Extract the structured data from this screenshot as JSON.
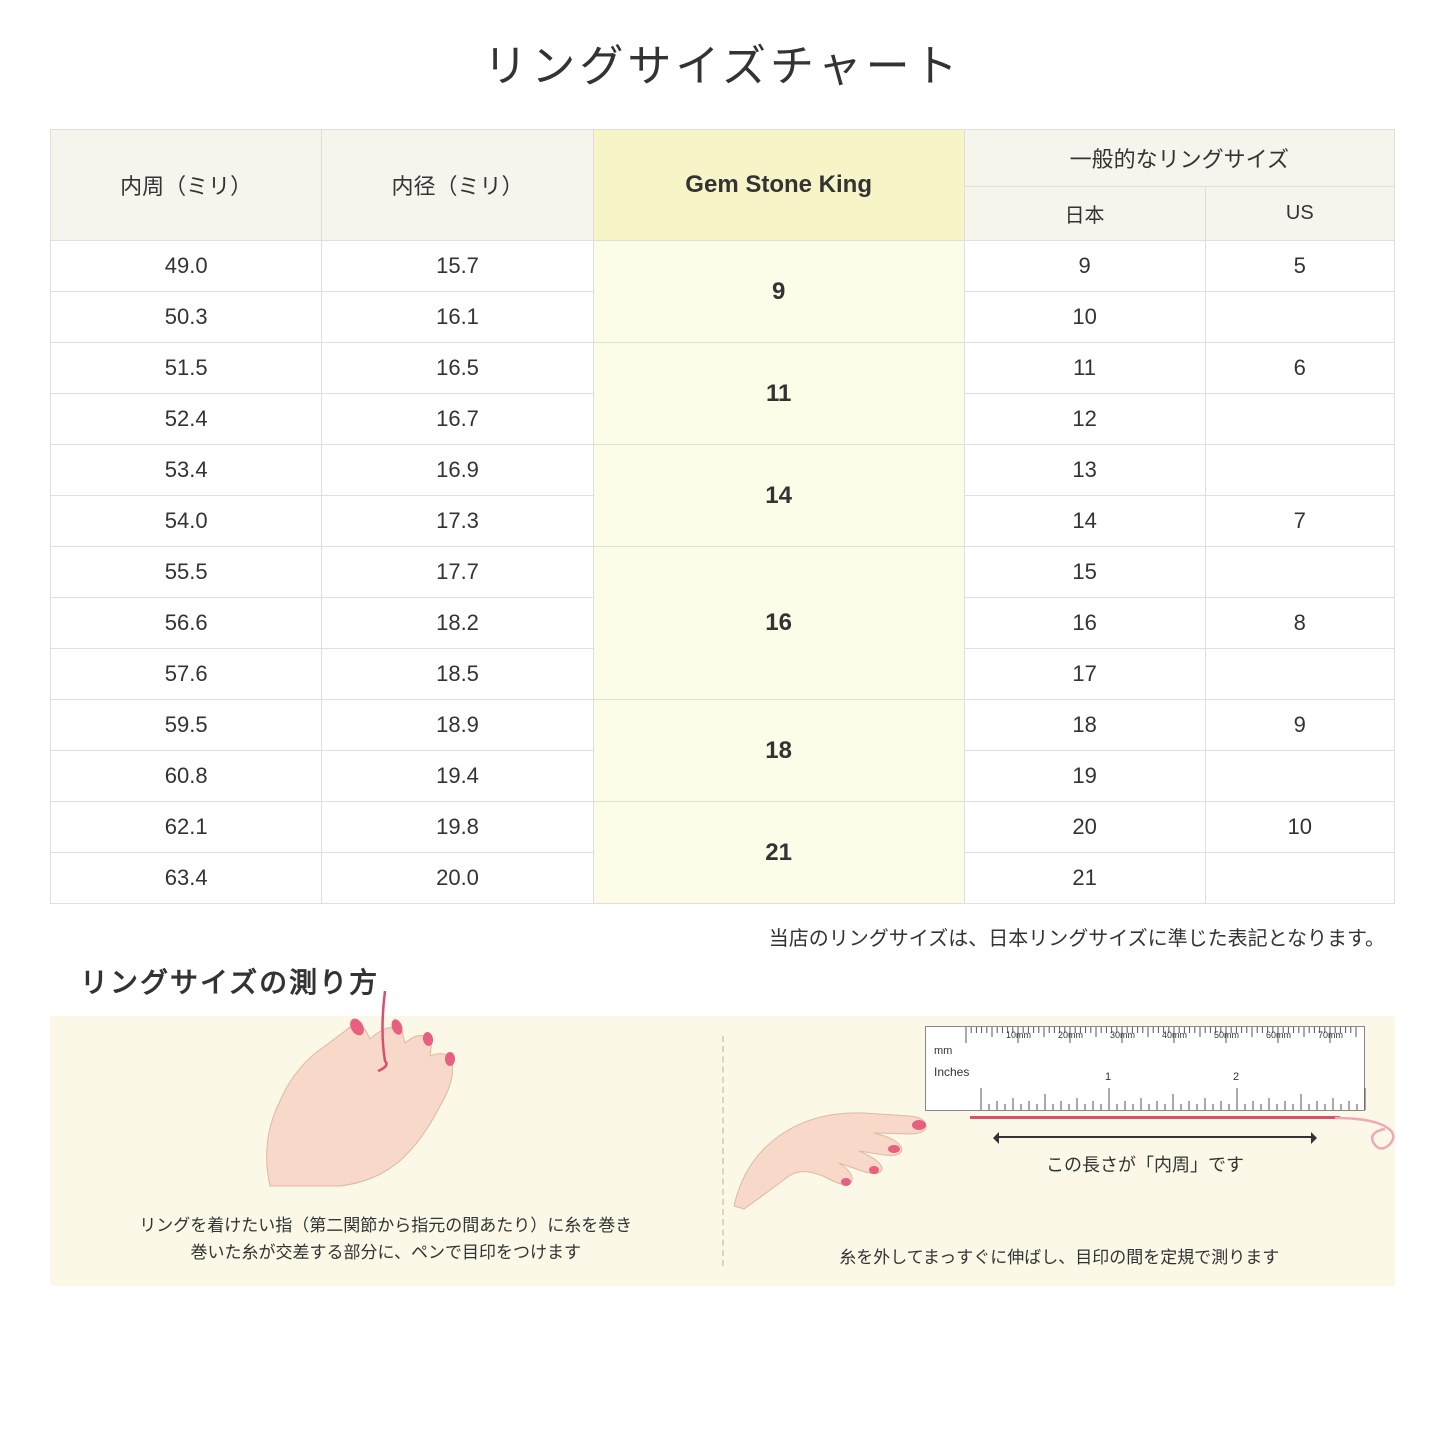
{
  "title": "リングサイズチャート",
  "headers": {
    "circumference": "内周（ミリ）",
    "diameter": "内径（ミリ）",
    "gsk": "Gem Stone King",
    "common": "一般的なリングサイズ",
    "japan": "日本",
    "us": "US"
  },
  "groups": [
    {
      "gsk": "9",
      "rows": [
        {
          "c": "49.0",
          "d": "15.7",
          "jp": "9",
          "us": "5"
        },
        {
          "c": "50.3",
          "d": "16.1",
          "jp": "10",
          "us": ""
        }
      ]
    },
    {
      "gsk": "11",
      "rows": [
        {
          "c": "51.5",
          "d": "16.5",
          "jp": "11",
          "us": "6"
        },
        {
          "c": "52.4",
          "d": "16.7",
          "jp": "12",
          "us": ""
        }
      ]
    },
    {
      "gsk": "14",
      "rows": [
        {
          "c": "53.4",
          "d": "16.9",
          "jp": "13",
          "us": ""
        },
        {
          "c": "54.0",
          "d": "17.3",
          "jp": "14",
          "us": "7"
        }
      ]
    },
    {
      "gsk": "16",
      "rows": [
        {
          "c": "55.5",
          "d": "17.7",
          "jp": "15",
          "us": ""
        },
        {
          "c": "56.6",
          "d": "18.2",
          "jp": "16",
          "us": "8"
        },
        {
          "c": "57.6",
          "d": "18.5",
          "jp": "17",
          "us": ""
        }
      ]
    },
    {
      "gsk": "18",
      "rows": [
        {
          "c": "59.5",
          "d": "18.9",
          "jp": "18",
          "us": "9"
        },
        {
          "c": "60.8",
          "d": "19.4",
          "jp": "19",
          "us": ""
        }
      ]
    },
    {
      "gsk": "21",
      "rows": [
        {
          "c": "62.1",
          "d": "19.8",
          "jp": "20",
          "us": "10"
        },
        {
          "c": "63.4",
          "d": "20.0",
          "jp": "21",
          "us": ""
        }
      ]
    }
  ],
  "note": "当店のリングサイズは、日本リングサイズに準じた表記となります。",
  "measure_title": "リングサイズの測り方",
  "caption_left_1": "リングを着けたい指（第二関節から指元の間あたり）に糸を巻き",
  "caption_left_2": "巻いた糸が交差する部分に、ペンで目印をつけます",
  "arrow_label": "この長さが「内周」です",
  "caption_right": "糸を外してまっすぐに伸ばし、目印の間を定規で測ります",
  "ruler": {
    "mm_label": "mm",
    "in_label": "Inches",
    "mm_marks": [
      "10mm",
      "20mm",
      "30mm",
      "40mm",
      "50mm",
      "60mm",
      "70mm"
    ],
    "in_marks": [
      "1",
      "2"
    ]
  },
  "colors": {
    "header_bg": "#f5f5ed",
    "gsk_header_bg": "#f7f5c8",
    "gsk_cell_bg": "#fdfce8",
    "instruction_bg": "#fbf8e8",
    "thread": "#d94f6f",
    "skin": "#f8d8c8",
    "nail": "#e8607f"
  }
}
